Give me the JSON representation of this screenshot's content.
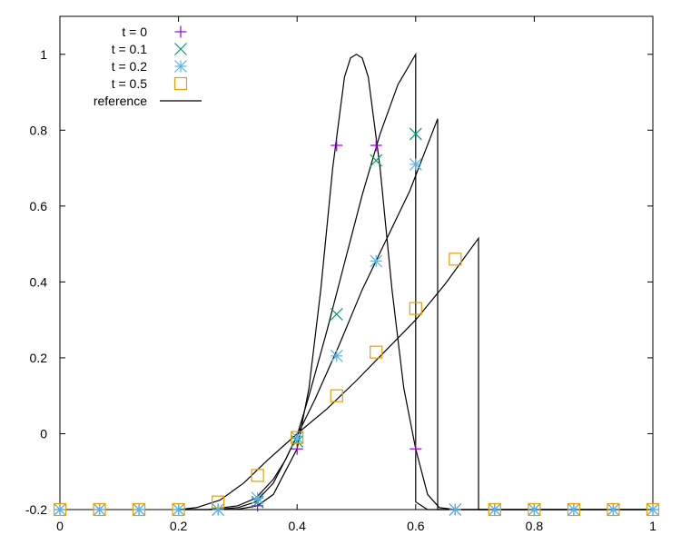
{
  "chart_data": {
    "type": "scatter",
    "xlim": [
      0,
      1
    ],
    "ylim": [
      -0.2,
      1.1
    ],
    "x_ticks": [
      0,
      0.2,
      0.4,
      0.6,
      0.8,
      1
    ],
    "y_ticks": [
      -0.2,
      0,
      0.2,
      0.4,
      0.6,
      0.8,
      1
    ],
    "x_tick_labels": [
      "0",
      "0.2",
      "0.4",
      "0.6",
      "0.8",
      "1"
    ],
    "y_tick_labels": [
      "-0.2",
      "0",
      "0.2",
      "0.4",
      "0.6",
      "0.8",
      "1"
    ],
    "grid": false,
    "legend_position": "top-left",
    "series": [
      {
        "name": "t = 0",
        "marker": "plus",
        "color": "#9400d3",
        "x": [
          0,
          0.0667,
          0.1333,
          0.2,
          0.2667,
          0.3333,
          0.4,
          0.4667,
          0.5333,
          0.6,
          0.6667,
          0.7333,
          0.8,
          0.8667,
          0.9333,
          1
        ],
        "y": [
          -0.2,
          -0.2,
          -0.2,
          -0.2,
          -0.2,
          -0.19,
          -0.04,
          0.76,
          0.76,
          -0.04,
          -0.2,
          -0.2,
          -0.2,
          -0.2,
          -0.2,
          -0.2
        ]
      },
      {
        "name": "t = 0.1",
        "marker": "x",
        "color": "#009e73",
        "x": [
          0,
          0.0667,
          0.1333,
          0.2,
          0.2667,
          0.3333,
          0.4,
          0.4667,
          0.5333,
          0.6,
          0.6667,
          0.7333,
          0.8,
          0.8667,
          0.9333,
          1
        ],
        "y": [
          -0.2,
          -0.2,
          -0.2,
          -0.2,
          -0.2,
          -0.18,
          -0.02,
          0.315,
          0.72,
          0.79,
          -0.2,
          -0.2,
          -0.2,
          -0.2,
          -0.2,
          -0.2
        ]
      },
      {
        "name": "t = 0.2",
        "marker": "star",
        "color": "#56b4e9",
        "x": [
          0,
          0.0667,
          0.1333,
          0.2,
          0.2667,
          0.3333,
          0.4,
          0.4667,
          0.5333,
          0.6,
          0.6667,
          0.7333,
          0.8,
          0.8667,
          0.9333,
          1
        ],
        "y": [
          -0.2,
          -0.2,
          -0.2,
          -0.2,
          -0.2,
          -0.17,
          -0.01,
          0.205,
          0.455,
          0.71,
          -0.2,
          -0.2,
          -0.2,
          -0.2,
          -0.2,
          -0.2
        ]
      },
      {
        "name": "t = 0.5",
        "marker": "square",
        "color": "#e69f00",
        "x": [
          0,
          0.0667,
          0.1333,
          0.2,
          0.2667,
          0.3333,
          0.4,
          0.4667,
          0.5333,
          0.6,
          0.6667,
          0.7333,
          0.8,
          0.8667,
          0.9333,
          1
        ],
        "y": [
          -0.2,
          -0.2,
          -0.2,
          -0.2,
          -0.18,
          -0.11,
          -0.01,
          0.1,
          0.215,
          0.33,
          0.46,
          -0.2,
          -0.2,
          -0.2,
          -0.2,
          -0.2
        ]
      }
    ],
    "reference": {
      "name": "reference",
      "color": "#000000",
      "curves": [
        {
          "x": [
            0.2667,
            0.3,
            0.3333,
            0.36,
            0.38,
            0.4,
            0.42,
            0.44,
            0.46,
            0.48,
            0.49,
            0.5,
            0.51,
            0.52,
            0.54,
            0.56,
            0.58,
            0.6,
            0.62,
            0.64,
            0.6667,
            1
          ],
          "y": [
            -0.2,
            -0.199,
            -0.19,
            -0.16,
            -0.1,
            -0.04,
            0.12,
            0.38,
            0.7,
            0.94,
            0.99,
            1,
            0.99,
            0.94,
            0.7,
            0.38,
            0.12,
            -0.04,
            -0.16,
            -0.195,
            -0.2,
            -0.2
          ]
        },
        {
          "x": [
            0.2,
            0.26,
            0.3,
            0.33,
            0.36,
            0.38,
            0.4,
            0.42,
            0.45,
            0.48,
            0.51,
            0.54,
            0.57,
            0.6,
            0.6,
            0.62,
            0.65,
            1
          ],
          "y": [
            -0.2,
            -0.2,
            -0.195,
            -0.18,
            -0.13,
            -0.07,
            -0.005,
            0.1,
            0.27,
            0.45,
            0.63,
            0.79,
            0.92,
            1,
            -0.18,
            -0.2,
            -0.2,
            -0.2
          ]
        },
        {
          "x": [
            0.2,
            0.25,
            0.3,
            0.33,
            0.36,
            0.38,
            0.4,
            0.43,
            0.47,
            0.51,
            0.55,
            0.59,
            0.637,
            0.637,
            1
          ],
          "y": [
            -0.2,
            -0.2,
            -0.19,
            -0.17,
            -0.12,
            -0.07,
            -0.005,
            0.09,
            0.23,
            0.38,
            0.51,
            0.64,
            0.83,
            -0.2,
            -0.2
          ]
        },
        {
          "x": [
            0.2,
            0.23,
            0.27,
            0.31,
            0.35,
            0.4,
            0.45,
            0.5,
            0.55,
            0.6,
            0.65,
            0.706,
            0.706,
            1
          ],
          "y": [
            -0.2,
            -0.195,
            -0.175,
            -0.13,
            -0.07,
            0.0,
            0.065,
            0.14,
            0.22,
            0.3,
            0.395,
            0.515,
            -0.2,
            -0.2
          ]
        }
      ]
    }
  }
}
